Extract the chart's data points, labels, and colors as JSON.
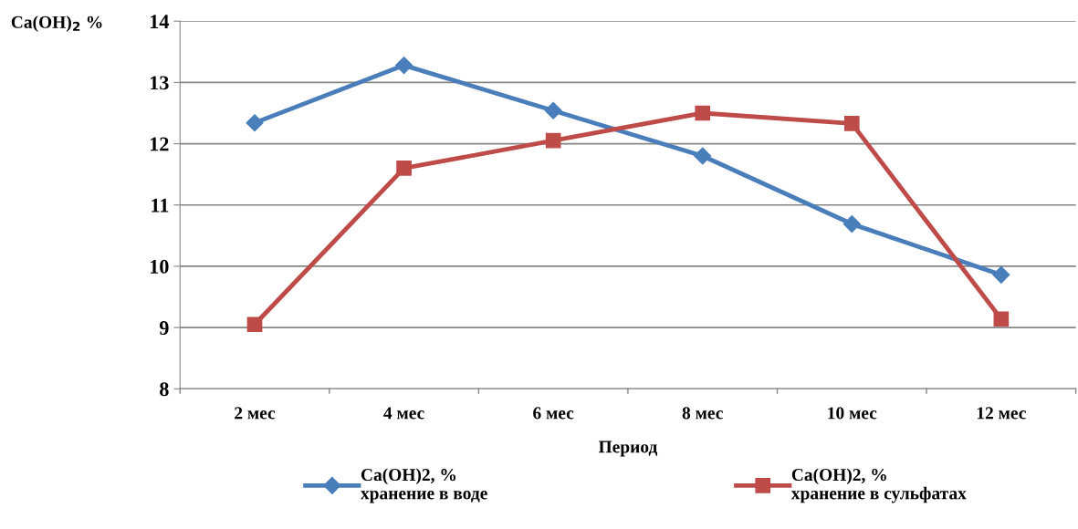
{
  "chart_data": {
    "type": "line",
    "xlabel": "Период",
    "ylabel": "Ca(OH)$_{2}$ %",
    "categories": [
      "2 мес",
      "4 мес",
      "6 мес",
      "8 мес",
      "10 мес",
      "12 мес"
    ],
    "series": [
      {
        "name": "Ca(OH)2, %\nхранение в воде",
        "color": "#4a7ebb",
        "marker": "diamond",
        "values": [
          12.34,
          13.28,
          12.54,
          11.8,
          10.69,
          9.86
        ]
      },
      {
        "name": "Ca(OH)2, %\nхранение в сульфатах",
        "color": "#be4b48",
        "marker": "square",
        "values": [
          9.05,
          11.6,
          12.05,
          12.5,
          12.33,
          9.14
        ]
      }
    ],
    "ylim": [
      8,
      14
    ],
    "yticks": [
      8,
      9,
      10,
      11,
      12,
      13,
      14
    ],
    "grid": "y",
    "legend": "bottom",
    "line_style": "solid"
  }
}
